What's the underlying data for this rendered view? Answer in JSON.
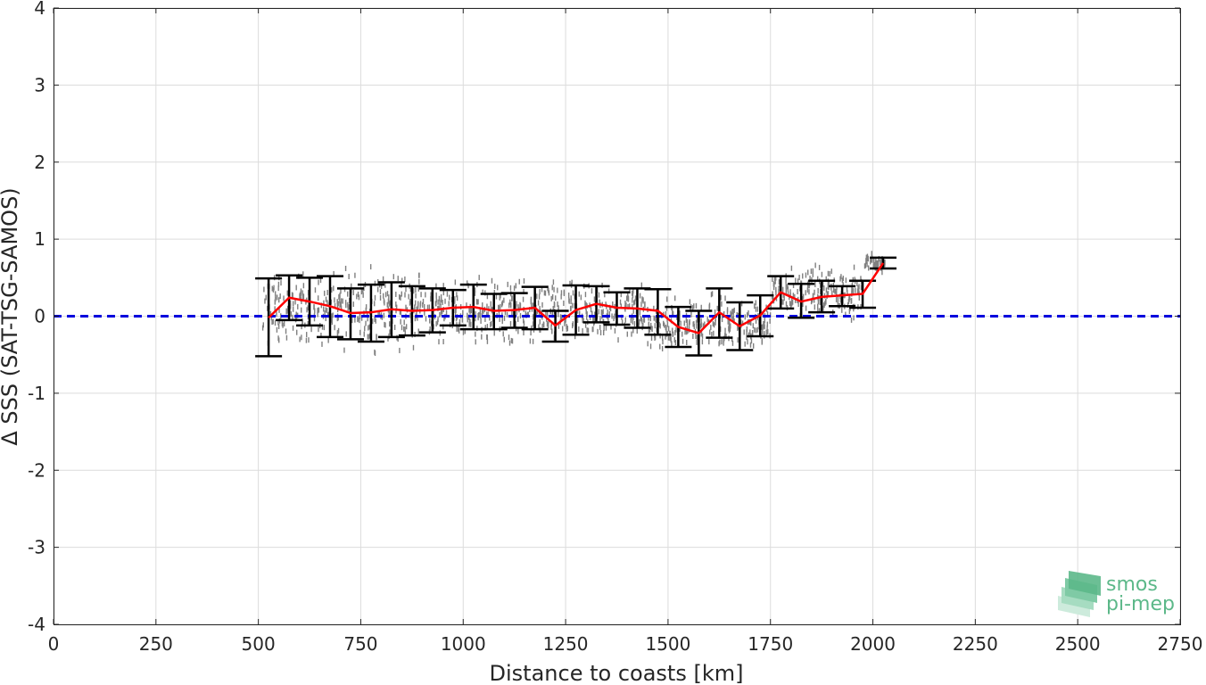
{
  "chart_data": {
    "type": "scatter",
    "xlabel": "Distance to coasts [km]",
    "ylabel": "Δ SSS (SAT-TSG-SAMOS)",
    "xlim": [
      0,
      2750
    ],
    "ylim": [
      -4,
      4
    ],
    "xticks": [
      "0",
      "250",
      "500",
      "750",
      "1000",
      "1250",
      "1500",
      "1750",
      "2000",
      "2250",
      "2500",
      "2750"
    ],
    "yticks": [
      "-4",
      "-3",
      "-2",
      "-1",
      "0",
      "1",
      "2",
      "3",
      "4"
    ],
    "grid": true,
    "zero_line": {
      "y": 0,
      "color": "#0000dd",
      "style": "dashed"
    },
    "series": [
      {
        "kind": "scatter",
        "color": "#808080",
        "description": "individual differences",
        "clusters": [
          {
            "x": [
              510,
              650
            ],
            "center": 0.1,
            "spread": 0.4
          },
          {
            "x": [
              650,
              900
            ],
            "center": 0.1,
            "spread": 0.45
          },
          {
            "x": [
              900,
              1200
            ],
            "center": 0.05,
            "spread": 0.35
          },
          {
            "x": [
              1200,
              1450
            ],
            "center": 0.05,
            "spread": 0.35
          },
          {
            "x": [
              1450,
              1750
            ],
            "center": -0.1,
            "spread": 0.3
          },
          {
            "x": [
              1750,
              1980
            ],
            "center": 0.3,
            "spread": 0.3
          },
          {
            "x": [
              1980,
              2030
            ],
            "center": 0.7,
            "spread": 0.1
          }
        ]
      },
      {
        "kind": "line",
        "color": "#ff0000",
        "description": "binned mean",
        "x": [
          525,
          575,
          625,
          675,
          725,
          775,
          825,
          875,
          925,
          975,
          1025,
          1075,
          1125,
          1175,
          1225,
          1275,
          1325,
          1375,
          1425,
          1475,
          1525,
          1575,
          1625,
          1675,
          1725,
          1775,
          1825,
          1875,
          1925,
          1975,
          2025
        ],
        "y": [
          -0.02,
          0.24,
          0.19,
          0.13,
          0.04,
          0.05,
          0.09,
          0.07,
          0.08,
          0.11,
          0.12,
          0.07,
          0.08,
          0.11,
          -0.12,
          0.08,
          0.16,
          0.11,
          0.1,
          0.07,
          -0.14,
          -0.22,
          0.05,
          -0.13,
          0.01,
          0.31,
          0.19,
          0.25,
          0.27,
          0.29,
          0.69
        ]
      },
      {
        "kind": "errorbar",
        "color": "#000000",
        "description": "binned standard deviation",
        "x": [
          525,
          575,
          625,
          675,
          725,
          775,
          825,
          875,
          925,
          975,
          1025,
          1075,
          1125,
          1175,
          1225,
          1275,
          1325,
          1375,
          1425,
          1475,
          1525,
          1575,
          1625,
          1675,
          1725,
          1775,
          1825,
          1875,
          1925,
          1975,
          2025
        ],
        "low": [
          -0.52,
          -0.05,
          -0.12,
          -0.27,
          -0.3,
          -0.33,
          -0.27,
          -0.25,
          -0.21,
          -0.12,
          -0.17,
          -0.17,
          -0.15,
          -0.17,
          -0.33,
          -0.24,
          -0.08,
          -0.11,
          -0.15,
          -0.24,
          -0.4,
          -0.51,
          -0.28,
          -0.44,
          -0.26,
          0.1,
          -0.02,
          0.05,
          0.13,
          0.11,
          0.62
        ],
        "high": [
          0.49,
          0.53,
          0.5,
          0.52,
          0.36,
          0.41,
          0.44,
          0.39,
          0.36,
          0.34,
          0.41,
          0.29,
          0.3,
          0.38,
          0.07,
          0.4,
          0.39,
          0.31,
          0.36,
          0.35,
          0.12,
          0.07,
          0.36,
          0.18,
          0.27,
          0.52,
          0.42,
          0.46,
          0.39,
          0.46,
          0.76
        ]
      }
    ]
  },
  "logo": {
    "line1": "smos",
    "line2": "pi-mep",
    "color": "#5cb889"
  }
}
